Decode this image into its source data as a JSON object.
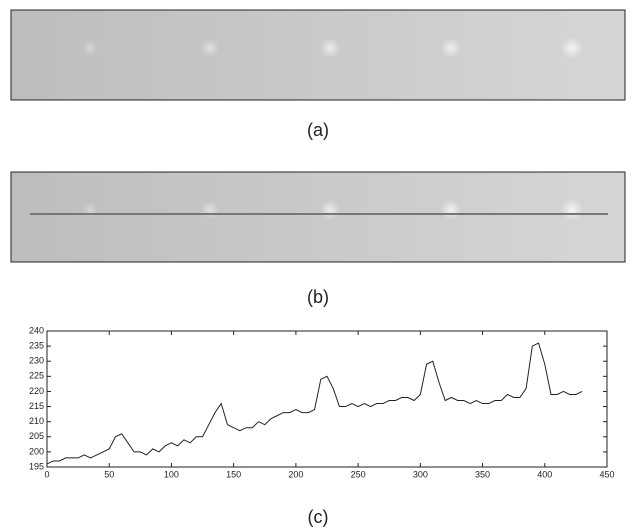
{
  "captions": [
    "(a)",
    "(b)",
    "(c)"
  ],
  "chart_data": {
    "type": "line",
    "x": [
      0,
      5,
      10,
      15,
      20,
      25,
      30,
      35,
      40,
      45,
      50,
      55,
      60,
      65,
      70,
      75,
      80,
      85,
      90,
      95,
      100,
      105,
      110,
      115,
      120,
      125,
      130,
      135,
      140,
      145,
      150,
      155,
      160,
      165,
      170,
      175,
      180,
      185,
      190,
      195,
      200,
      205,
      210,
      215,
      220,
      225,
      230,
      235,
      240,
      245,
      250,
      255,
      260,
      265,
      270,
      275,
      280,
      285,
      290,
      295,
      300,
      305,
      310,
      315,
      320,
      325,
      330,
      335,
      340,
      345,
      350,
      355,
      360,
      365,
      370,
      375,
      380,
      385,
      390,
      395,
      400,
      405,
      410,
      415,
      420,
      425,
      430
    ],
    "series": [
      {
        "color": "#222222",
        "values": [
          196,
          197,
          197,
          198,
          198,
          198,
          199,
          198,
          199,
          200,
          201,
          205,
          206,
          203,
          200,
          200,
          199,
          201,
          200,
          202,
          203,
          202,
          204,
          203,
          205,
          205,
          209,
          213,
          216,
          209,
          208,
          207,
          208,
          208,
          210,
          209,
          211,
          212,
          213,
          213,
          214,
          213,
          213,
          214,
          224,
          225,
          221,
          215,
          215,
          216,
          215,
          216,
          215,
          216,
          216,
          217,
          217,
          218,
          218,
          217,
          219,
          229,
          230,
          223,
          217,
          218,
          217,
          217,
          216,
          217,
          216,
          216,
          217,
          217,
          219,
          218,
          218,
          221,
          235,
          236,
          229,
          219,
          219,
          220,
          219,
          219,
          220
        ]
      }
    ],
    "xlim": [
      0,
      450
    ],
    "ylim": [
      195,
      240
    ],
    "xticks": [
      0,
      50,
      100,
      150,
      200,
      250,
      300,
      350,
      400,
      450
    ],
    "yticks": [
      195,
      200,
      205,
      210,
      215,
      220,
      225,
      230,
      235,
      240
    ]
  }
}
